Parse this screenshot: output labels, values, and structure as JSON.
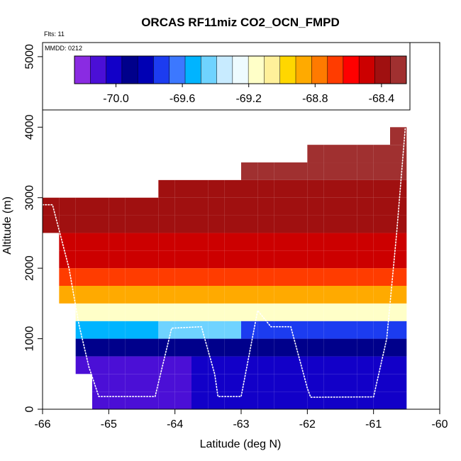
{
  "chart_data": {
    "type": "heatmap",
    "title": "ORCAS RF11miz CO2_OCN_FMPD",
    "annotations": {
      "flts": "Flts: 11",
      "mmdd": "MMDD: 0212"
    },
    "xlabel": "Latitude (deg N)",
    "ylabel": "Altitude (m)",
    "xlim": [
      -66,
      -60
    ],
    "ylim": [
      0,
      5200
    ],
    "x_ticks": [
      -66,
      -65,
      -64,
      -63,
      -62,
      -61,
      -60
    ],
    "y_ticks": [
      0,
      1000,
      2000,
      3000,
      4000,
      5000
    ],
    "colorbar": {
      "ticks": [
        -70.0,
        -69.6,
        -69.2,
        -68.8,
        -68.4
      ],
      "tick_labels": [
        "-70.0",
        "-69.6",
        "-69.2",
        "-68.8",
        "-68.4"
      ],
      "range": [
        -70.25,
        -68.25
      ],
      "colors": [
        "#8a2be2",
        "#4b0fd6",
        "#1200c8",
        "#00008b",
        "#0000b4",
        "#1c3cf0",
        "#3c78ff",
        "#00b4ff",
        "#6fd3ff",
        "#c8ebff",
        "#eefbff",
        "#ffffc8",
        "#fff09a",
        "#ffd700",
        "#ffaa00",
        "#ff7a00",
        "#ff3c00",
        "#ff0000",
        "#cc0000",
        "#a01010",
        "#a03030"
      ]
    },
    "bin": {
      "x_width": 0.25,
      "y_height": 250
    },
    "columns": [
      {
        "x0": -66.0,
        "top": 3000
      },
      {
        "x0": -65.75,
        "top": 3000
      },
      {
        "x0": -65.5,
        "top": 3000
      },
      {
        "x0": -65.25,
        "top": 3000
      },
      {
        "x0": -65.0,
        "top": 3000
      },
      {
        "x0": -64.75,
        "top": 3000
      },
      {
        "x0": -64.5,
        "top": 3000
      },
      {
        "x0": -64.25,
        "top": 3250
      },
      {
        "x0": -64.0,
        "top": 3250
      },
      {
        "x0": -63.75,
        "top": 3250
      },
      {
        "x0": -63.5,
        "top": 3250
      },
      {
        "x0": -63.25,
        "top": 3250
      },
      {
        "x0": -63.0,
        "top": 3500
      },
      {
        "x0": -62.75,
        "top": 3500
      },
      {
        "x0": -62.5,
        "top": 3500
      },
      {
        "x0": -62.25,
        "top": 3500
      },
      {
        "x0": -62.0,
        "top": 3750
      },
      {
        "x0": -61.75,
        "top": 3750
      },
      {
        "x0": -61.5,
        "top": 3750
      },
      {
        "x0": -61.25,
        "top": 3750
      },
      {
        "x0": -61.0,
        "top": 3750
      },
      {
        "x0": -60.75,
        "top": 4000
      }
    ],
    "flight_track": [
      [
        -66.0,
        2900
      ],
      [
        -65.85,
        2900
      ],
      [
        -65.6,
        2000
      ],
      [
        -65.45,
        1200
      ],
      [
        -65.3,
        600
      ],
      [
        -65.15,
        180
      ],
      [
        -64.3,
        180
      ],
      [
        -64.05,
        1150
      ],
      [
        -63.6,
        1170
      ],
      [
        -63.4,
        500
      ],
      [
        -63.35,
        180
      ],
      [
        -63.0,
        180
      ],
      [
        -62.75,
        1400
      ],
      [
        -62.55,
        1170
      ],
      [
        -62.25,
        1170
      ],
      [
        -62.0,
        300
      ],
      [
        -61.95,
        170
      ],
      [
        -61.0,
        175
      ],
      [
        -60.8,
        1000
      ],
      [
        -60.65,
        2500
      ],
      [
        -60.52,
        4000
      ]
    ]
  }
}
